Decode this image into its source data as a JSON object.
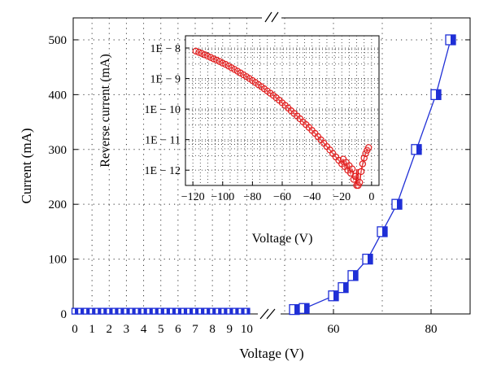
{
  "chart_data": [
    {
      "type": "line",
      "role": "main",
      "xlabel": "Voltage (V)",
      "ylabel": "Current (mA)",
      "x_axis_broken": true,
      "x_segments": [
        {
          "range": [
            0,
            10.5
          ],
          "ticks": [
            0,
            1,
            2,
            3,
            4,
            5,
            6,
            7,
            8,
            9,
            10
          ],
          "tick_labels": [
            "0",
            "1",
            "2",
            "3",
            "4",
            "5",
            "6",
            "7",
            "8",
            "9",
            "10"
          ]
        },
        {
          "range": [
            48,
            88
          ],
          "ticks": [
            60,
            80
          ],
          "tick_labels": [
            "60",
            "80"
          ]
        }
      ],
      "ylim": [
        0,
        540
      ],
      "yticks": [
        0,
        100,
        200,
        300,
        400,
        500
      ],
      "ytick_labels": [
        "0",
        "100",
        "200",
        "300",
        "400",
        "500"
      ],
      "grid": true,
      "series": [
        {
          "color": "#1f2fd6",
          "marker": "square-half-filled",
          "points": [
            [
              0,
              5
            ],
            [
              0.333,
              5
            ],
            [
              0.667,
              5
            ],
            [
              1,
              5
            ],
            [
              1.333,
              5
            ],
            [
              1.667,
              5
            ],
            [
              2,
              5
            ],
            [
              2.333,
              5
            ],
            [
              2.667,
              5
            ],
            [
              3,
              5
            ],
            [
              3.333,
              5
            ],
            [
              3.667,
              5
            ],
            [
              4,
              5
            ],
            [
              4.333,
              5
            ],
            [
              4.667,
              5
            ],
            [
              5,
              5
            ],
            [
              5.333,
              5
            ],
            [
              5.667,
              5
            ],
            [
              6,
              5
            ],
            [
              6.333,
              5
            ],
            [
              6.667,
              5
            ],
            [
              7,
              5
            ],
            [
              7.333,
              5
            ],
            [
              7.667,
              5
            ],
            [
              8,
              5
            ],
            [
              8.333,
              5
            ],
            [
              8.667,
              5
            ],
            [
              9,
              5
            ],
            [
              9.333,
              5
            ],
            [
              9.667,
              5
            ],
            [
              10,
              5
            ],
            [
              52,
              8
            ],
            [
              54,
              10
            ],
            [
              60,
              33
            ],
            [
              62,
              48
            ],
            [
              64,
              70
            ],
            [
              67,
              100
            ],
            [
              70,
              150
            ],
            [
              73,
              200
            ],
            [
              77,
              300
            ],
            [
              81,
              400
            ],
            [
              84,
              500
            ]
          ]
        }
      ]
    },
    {
      "type": "line",
      "role": "inset",
      "xlabel": "Voltage (V)",
      "ylabel": "Reverse current (mA)",
      "xlim": [
        -125,
        5
      ],
      "xticks": [
        -120,
        -100,
        -80,
        -60,
        -40,
        -20,
        0
      ],
      "xtick_labels": [
        "−120",
        "−100",
        "−80",
        "−60",
        "−40",
        "−20",
        "0"
      ],
      "y_scale": "log",
      "ylim_exp": [
        -12.5,
        -7.6
      ],
      "yticks_exp": [
        -8,
        -9,
        -10,
        -11,
        -12
      ],
      "ytick_labels": [
        "1E − 8",
        "1E − 9",
        "1E − 10",
        "1E − 11",
        "1E − 12"
      ],
      "grid": true,
      "series": [
        {
          "color": "#e11b1b",
          "marker": "circle-open",
          "points": [
            [
              -118,
              7.9e-09
            ],
            [
              -116,
              7.2e-09
            ],
            [
              -114,
              6.6e-09
            ],
            [
              -112,
              6e-09
            ],
            [
              -110,
              5.4e-09
            ],
            [
              -108,
              4.9e-09
            ],
            [
              -106,
              4.4e-09
            ],
            [
              -104,
              4e-09
            ],
            [
              -102,
              3.6e-09
            ],
            [
              -100,
              3.2e-09
            ],
            [
              -98,
              2.9e-09
            ],
            [
              -96,
              2.55e-09
            ],
            [
              -94,
              2.25e-09
            ],
            [
              -92,
              1.98e-09
            ],
            [
              -90,
              1.74e-09
            ],
            [
              -88,
              1.52e-09
            ],
            [
              -86,
              1.32e-09
            ],
            [
              -84,
              1.15e-09
            ],
            [
              -82,
              1e-09
            ],
            [
              -80,
              8.6e-10
            ],
            [
              -78,
              7.4e-10
            ],
            [
              -76,
              6.3e-10
            ],
            [
              -74,
              5.4e-10
            ],
            [
              -72,
              4.6e-10
            ],
            [
              -70,
              3.9e-10
            ],
            [
              -68,
              3.3e-10
            ],
            [
              -66,
              2.8e-10
            ],
            [
              -64,
              2.35e-10
            ],
            [
              -62,
              1.95e-10
            ],
            [
              -60,
              1.6e-10
            ],
            [
              -58,
              1.32e-10
            ],
            [
              -56,
              1.08e-10
            ],
            [
              -54,
              8.8e-11
            ],
            [
              -52,
              7.2e-11
            ],
            [
              -50,
              5.9e-11
            ],
            [
              -48,
              4.8e-11
            ],
            [
              -46,
              3.8e-11
            ],
            [
              -44,
              3.1e-11
            ],
            [
              -42,
              2.5e-11
            ],
            [
              -40,
              2e-11
            ],
            [
              -38,
              1.6e-11
            ],
            [
              -36,
              1.25e-11
            ],
            [
              -34,
              9.8e-12
            ],
            [
              -32,
              7.6e-12
            ],
            [
              -30,
              5.9e-12
            ],
            [
              -28,
              4.6e-12
            ],
            [
              -26,
              3.5e-12
            ],
            [
              -24,
              2.7e-12
            ],
            [
              -22,
              2.1e-12
            ],
            [
              -20,
              1.6e-12
            ],
            [
              -19,
              2.3e-12
            ],
            [
              -18,
              1.3e-12
            ],
            [
              -17,
              1.8e-12
            ],
            [
              -16,
              1e-12
            ],
            [
              -15,
              1.4e-12
            ],
            [
              -14,
              8e-13
            ],
            [
              -13,
              1.1e-12
            ],
            [
              -12,
              5e-13
            ],
            [
              -11,
              6.3e-13
            ],
            [
              -10,
              3e-13
            ],
            [
              -9,
              1.2e-13
            ],
            [
              -8,
              4e-13
            ],
            [
              -7,
              9e-13
            ],
            [
              -6,
              1.6e-12
            ],
            [
              -5,
              2.5e-12
            ],
            [
              -4,
              3.5e-12
            ],
            [
              -3,
              4.5e-12
            ],
            [
              -2,
              5.5e-12
            ]
          ]
        }
      ]
    }
  ]
}
